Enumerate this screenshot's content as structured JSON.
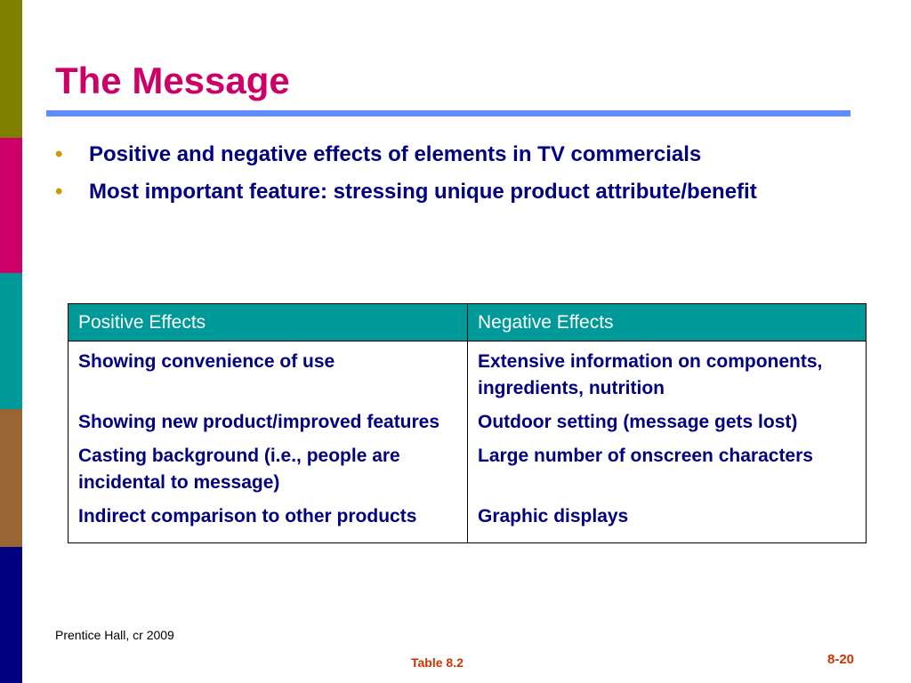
{
  "slide": {
    "title": "The Message",
    "bullets": [
      "Positive and negative effects of elements in TV commercials",
      "Most important feature: stressing unique product attribute/benefit"
    ],
    "bullet_symbol": "•"
  },
  "table": {
    "headers": [
      "Positive Effects",
      "Negative Effects"
    ],
    "rows": [
      [
        "Showing convenience of use",
        "Extensive information on components, ingredients, nutrition"
      ],
      [
        "Showing new product/improved features",
        "Outdoor setting (message gets lost)"
      ],
      [
        "Casting background (i.e., people are incidental to message)",
        "Large number of onscreen characters"
      ],
      [
        "Indirect comparison to other products",
        "Graphic displays"
      ]
    ]
  },
  "footer": {
    "credit": "Prentice Hall, cr 2009",
    "table_ref": "Table 8.2",
    "page_number": "8-20"
  },
  "colors": {
    "title": "#cc0066",
    "title_rule": "#5f8dff",
    "body_text": "#000080",
    "bullet": "#cc9900",
    "table_header_bg": "#009999",
    "footer_accent": "#cc3300",
    "stripes": [
      "#808000",
      "#cc0066",
      "#009999",
      "#996633",
      "#000080"
    ]
  }
}
